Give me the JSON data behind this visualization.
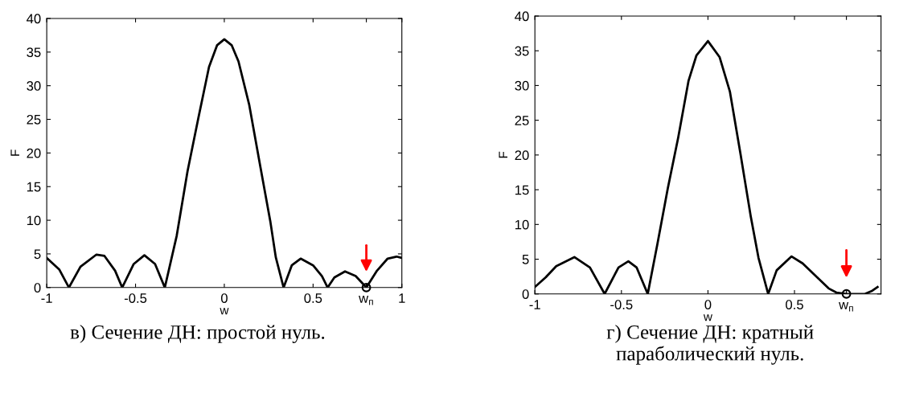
{
  "chart_data": [
    {
      "type": "line",
      "xlabel": "w",
      "ylabel": "F",
      "xlim": [
        -1,
        1
      ],
      "ylim": [
        0,
        40
      ],
      "xticks": [
        -1,
        -0.5,
        0,
        0.5,
        {
          "value": 0.8,
          "label": "w$_{п}$"
        },
        1
      ],
      "yticks": [
        0,
        5,
        10,
        15,
        20,
        25,
        30,
        35,
        40
      ],
      "grid": false,
      "line_style": "solid",
      "annotations": [
        "в) Сечение ДН: простой нуль."
      ],
      "series": [
        {
          "color": "#000000",
          "x": [
            -1,
            -0.93,
            -0.875,
            -0.81,
            -0.72,
            -0.675,
            -0.615,
            -0.575,
            -0.51,
            -0.45,
            -0.39,
            -0.335,
            -0.268,
            -0.207,
            -0.146,
            -0.086,
            -0.041,
            0,
            0.042,
            0.08,
            0.14,
            0.2,
            0.26,
            0.29,
            0.334,
            0.38,
            0.43,
            0.5,
            0.55,
            0.582,
            0.62,
            0.68,
            0.74,
            0.8,
            0.86,
            0.92,
            0.97,
            1
          ],
          "values": [
            4.4,
            2.7,
            0,
            3.1,
            4.9,
            4.7,
            2.5,
            0,
            3.5,
            4.8,
            3.5,
            0,
            7.7,
            17.3,
            25.2,
            32.8,
            36,
            36.9,
            36,
            33.6,
            27.2,
            18.4,
            9.7,
            4.5,
            0,
            3.3,
            4.3,
            3.3,
            1.7,
            0,
            1.5,
            2.4,
            1.7,
            0,
            2.5,
            4.3,
            4.6,
            4.4
          ]
        },
        {
          "type": "scatter",
          "marker": "circle",
          "color": "#000000",
          "x": [
            0.8
          ],
          "values": [
            0
          ]
        }
      ]
    },
    {
      "type": "line",
      "xlabel": "w",
      "ylabel": "F",
      "xlim": [
        -1,
        1
      ],
      "ylim": [
        0,
        40
      ],
      "xticks": [
        -1,
        -0.5,
        0,
        0.5,
        {
          "value": 0.8,
          "label": "w$_{п}$"
        }
      ],
      "yticks": [
        0,
        5,
        10,
        15,
        20,
        25,
        30,
        35,
        40
      ],
      "grid": false,
      "line_style": "solid",
      "annotations": [
        "г) Сечение ДН: кратный\nпараболический нуль."
      ],
      "series": [
        {
          "color": "#000000",
          "x": [
            -1,
            -0.937,
            -0.877,
            -0.772,
            -0.682,
            -0.597,
            -0.517,
            -0.46,
            -0.412,
            -0.348,
            -0.292,
            -0.232,
            -0.172,
            -0.112,
            -0.067,
            0,
            0.067,
            0.127,
            0.187,
            0.247,
            0.292,
            0.348,
            0.397,
            0.483,
            0.547,
            0.622,
            0.697,
            0.742,
            0.802,
            0.907,
            0.945,
            0.98
          ],
          "values": [
            1.0,
            2.4,
            4.0,
            5.3,
            3.8,
            0,
            3.8,
            4.7,
            3.8,
            0,
            7.2,
            15.2,
            22.5,
            30.7,
            34.3,
            36.4,
            34.1,
            29.1,
            20.3,
            11.2,
            5.2,
            0,
            3.4,
            5.4,
            4.4,
            2.6,
            0.8,
            0.2,
            0,
            0,
            0.4,
            1.0
          ]
        },
        {
          "type": "scatter",
          "marker": "circle",
          "color": "#000000",
          "x": [
            0.8
          ],
          "values": [
            0
          ]
        }
      ]
    }
  ]
}
